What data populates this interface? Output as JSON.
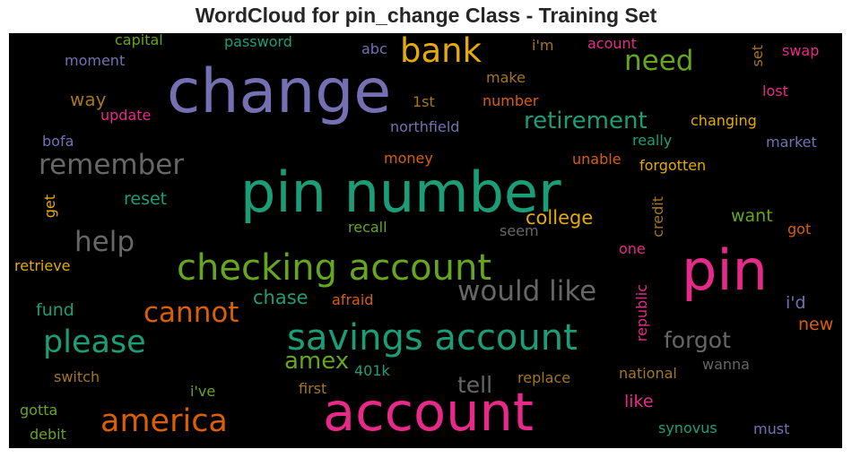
{
  "chart_data": {
    "type": "wordcloud",
    "title": "WordCloud for pin_change Class - Training Set",
    "background": "#000000",
    "words": [
      {
        "text": "change",
        "weight": 1.0,
        "color": "#7570b3"
      },
      {
        "text": "pin number",
        "weight": 0.92,
        "color": "#1b9e77"
      },
      {
        "text": "account",
        "weight": 0.9,
        "color": "#e7298a"
      },
      {
        "text": "pin",
        "weight": 0.88,
        "color": "#e7298a"
      },
      {
        "text": "checking account",
        "weight": 0.55,
        "color": "#66a61e"
      },
      {
        "text": "savings account",
        "weight": 0.55,
        "color": "#1b9e77"
      },
      {
        "text": "bank",
        "weight": 0.5,
        "color": "#e6ab02"
      },
      {
        "text": "america",
        "weight": 0.48,
        "color": "#d95f02"
      },
      {
        "text": "please",
        "weight": 0.47,
        "color": "#1b9e77"
      },
      {
        "text": "would like",
        "weight": 0.42,
        "color": "#666666"
      },
      {
        "text": "need",
        "weight": 0.4,
        "color": "#66a61e"
      },
      {
        "text": "remember",
        "weight": 0.4,
        "color": "#666666"
      },
      {
        "text": "help",
        "weight": 0.38,
        "color": "#666666"
      },
      {
        "text": "cannot",
        "weight": 0.38,
        "color": "#d95f02"
      },
      {
        "text": "retirement",
        "weight": 0.34,
        "color": "#1b9e77"
      },
      {
        "text": "amex",
        "weight": 0.32,
        "color": "#66a61e"
      },
      {
        "text": "forgot",
        "weight": 0.32,
        "color": "#666666"
      },
      {
        "text": "tell",
        "weight": 0.3,
        "color": "#666666"
      },
      {
        "text": "college",
        "weight": 0.26,
        "color": "#e6ab02"
      },
      {
        "text": "chase",
        "weight": 0.26,
        "color": "#1b9e77"
      },
      {
        "text": "way",
        "weight": 0.25,
        "color": "#a6761d"
      },
      {
        "text": "reset",
        "weight": 0.24,
        "color": "#1b9e77"
      },
      {
        "text": "want",
        "weight": 0.24,
        "color": "#66a61e"
      },
      {
        "text": "fund",
        "weight": 0.24,
        "color": "#1b9e77"
      },
      {
        "text": "new",
        "weight": 0.24,
        "color": "#d95f02"
      },
      {
        "text": "i'd",
        "weight": 0.24,
        "color": "#7570b3"
      },
      {
        "text": "like",
        "weight": 0.24,
        "color": "#e7298a"
      },
      {
        "text": "changing",
        "weight": 0.2,
        "color": "#e6ab02"
      },
      {
        "text": "capital",
        "weight": 0.19,
        "color": "#66a61e"
      },
      {
        "text": "password",
        "weight": 0.19,
        "color": "#1b9e77"
      },
      {
        "text": "abc",
        "weight": 0.19,
        "color": "#7570b3"
      },
      {
        "text": "i'm",
        "weight": 0.19,
        "color": "#a6761d"
      },
      {
        "text": "acount",
        "weight": 0.19,
        "color": "#e7298a"
      },
      {
        "text": "swap",
        "weight": 0.19,
        "color": "#e7298a"
      },
      {
        "text": "set",
        "weight": 0.19,
        "color": "#a6761d"
      },
      {
        "text": "moment",
        "weight": 0.19,
        "color": "#7570b3"
      },
      {
        "text": "make",
        "weight": 0.19,
        "color": "#a6761d"
      },
      {
        "text": "lost",
        "weight": 0.19,
        "color": "#e7298a"
      },
      {
        "text": "1st",
        "weight": 0.19,
        "color": "#a6761d"
      },
      {
        "text": "number",
        "weight": 0.19,
        "color": "#d95f02"
      },
      {
        "text": "update",
        "weight": 0.19,
        "color": "#e7298a"
      },
      {
        "text": "northfield",
        "weight": 0.19,
        "color": "#7570b3"
      },
      {
        "text": "bofa",
        "weight": 0.19,
        "color": "#7570b3"
      },
      {
        "text": "really",
        "weight": 0.19,
        "color": "#1b9e77"
      },
      {
        "text": "market",
        "weight": 0.19,
        "color": "#7570b3"
      },
      {
        "text": "money",
        "weight": 0.19,
        "color": "#d95f02"
      },
      {
        "text": "unable",
        "weight": 0.19,
        "color": "#d95f02"
      },
      {
        "text": "forgotten",
        "weight": 0.19,
        "color": "#e6ab02"
      },
      {
        "text": "get",
        "weight": 0.19,
        "color": "#e6ab02"
      },
      {
        "text": "credit",
        "weight": 0.19,
        "color": "#a6761d"
      },
      {
        "text": "recall",
        "weight": 0.19,
        "color": "#66a61e"
      },
      {
        "text": "seem",
        "weight": 0.19,
        "color": "#666666"
      },
      {
        "text": "got",
        "weight": 0.19,
        "color": "#d95f02"
      },
      {
        "text": "one",
        "weight": 0.19,
        "color": "#e7298a"
      },
      {
        "text": "retrieve",
        "weight": 0.19,
        "color": "#e6ab02"
      },
      {
        "text": "afraid",
        "weight": 0.19,
        "color": "#d95f02"
      },
      {
        "text": "republic",
        "weight": 0.19,
        "color": "#e7298a"
      },
      {
        "text": "401k",
        "weight": 0.19,
        "color": "#1b9e77"
      },
      {
        "text": "replace",
        "weight": 0.19,
        "color": "#a6761d"
      },
      {
        "text": "switch",
        "weight": 0.19,
        "color": "#a6761d"
      },
      {
        "text": "national",
        "weight": 0.19,
        "color": "#a6761d"
      },
      {
        "text": "wanna",
        "weight": 0.19,
        "color": "#666666"
      },
      {
        "text": "i've",
        "weight": 0.19,
        "color": "#66a61e"
      },
      {
        "text": "first",
        "weight": 0.19,
        "color": "#a6761d"
      },
      {
        "text": "gotta",
        "weight": 0.19,
        "color": "#66a61e"
      },
      {
        "text": "debit",
        "weight": 0.19,
        "color": "#66a61e"
      },
      {
        "text": "synovus",
        "weight": 0.19,
        "color": "#1b9e77"
      },
      {
        "text": "must",
        "weight": 0.19,
        "color": "#7570b3"
      }
    ]
  }
}
